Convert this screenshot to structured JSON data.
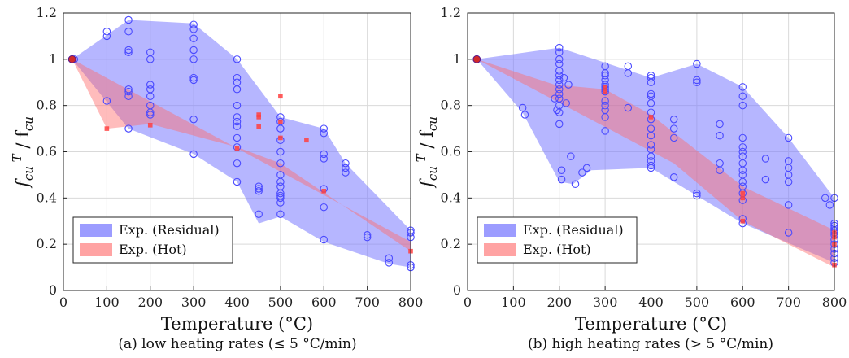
{
  "chart_data": [
    {
      "type": "scatter",
      "panel": "a",
      "caption": "(a) low heating rates (≤ 5 °C/min)",
      "xlabel": "Temperature (°C)",
      "ylabel": "fcu T / fcu",
      "xlim": [
        0,
        800
      ],
      "ylim": [
        0,
        1.2
      ],
      "xticks": [
        "0",
        "100",
        "200",
        "300",
        "400",
        "500",
        "600",
        "700",
        "800"
      ],
      "yticks": [
        "0",
        "0.2",
        "0.4",
        "0.6",
        "0.8",
        "1",
        "1.2"
      ],
      "grid": true,
      "legend_position": "bottom-left",
      "legend": [
        "Exp. (Residual)",
        "Exp. (Hot)"
      ],
      "series": [
        {
          "name": "Exp. (Residual)",
          "color": "#6666ff",
          "marker": "circle",
          "envelope": [
            [
              20,
              1.0
            ],
            [
              150,
              1.17
            ],
            [
              300,
              1.155
            ],
            [
              400,
              1.0
            ],
            [
              500,
              0.75
            ],
            [
              600,
              0.7
            ],
            [
              650,
              0.55
            ],
            [
              800,
              0.26
            ],
            [
              800,
              0.1
            ],
            [
              750,
              0.115
            ],
            [
              600,
              0.21
            ],
            [
              500,
              0.32
            ],
            [
              450,
              0.29
            ],
            [
              400,
              0.47
            ],
            [
              300,
              0.59
            ],
            [
              150,
              0.7
            ],
            [
              20,
              1.0
            ]
          ],
          "x": [
            20,
            20,
            25,
            100,
            100,
            100,
            150,
            150,
            150,
            150,
            150,
            150,
            150,
            150,
            200,
            200,
            200,
            200,
            200,
            200,
            200,
            200,
            300,
            300,
            300,
            300,
            300,
            300,
            300,
            300,
            300,
            400,
            400,
            400,
            400,
            400,
            400,
            400,
            400,
            400,
            400,
            400,
            400,
            450,
            450,
            450,
            450,
            500,
            500,
            500,
            500,
            500,
            500,
            500,
            500,
            500,
            500,
            500,
            500,
            500,
            500,
            600,
            600,
            600,
            600,
            600,
            600,
            600,
            650,
            650,
            650,
            700,
            700,
            750,
            750,
            800,
            800,
            800,
            800,
            800
          ],
          "y": [
            1.0,
            1.0,
            1.0,
            1.1,
            1.12,
            0.82,
            1.17,
            1.12,
            1.04,
            1.03,
            0.87,
            0.86,
            0.84,
            0.7,
            1.03,
            1.0,
            0.89,
            0.87,
            0.84,
            0.8,
            0.77,
            0.76,
            1.15,
            1.13,
            1.09,
            1.04,
            1.0,
            0.92,
            0.91,
            0.74,
            0.59,
            1.0,
            0.92,
            0.9,
            0.87,
            0.8,
            0.75,
            0.73,
            0.71,
            0.66,
            0.62,
            0.55,
            0.47,
            0.45,
            0.44,
            0.43,
            0.33,
            0.75,
            0.73,
            0.7,
            0.65,
            0.6,
            0.55,
            0.5,
            0.47,
            0.45,
            0.42,
            0.41,
            0.4,
            0.38,
            0.33,
            0.7,
            0.68,
            0.59,
            0.57,
            0.44,
            0.36,
            0.22,
            0.55,
            0.53,
            0.51,
            0.24,
            0.23,
            0.14,
            0.12,
            0.26,
            0.25,
            0.23,
            0.11,
            0.1
          ]
        },
        {
          "name": "Exp. (Hot)",
          "color": "#ff5a5a",
          "marker": "square",
          "envelope": [
            [
              20,
              1.0
            ],
            [
              800,
              0.21
            ],
            [
              800,
              0.17
            ],
            [
              500,
              0.55
            ],
            [
              400,
              0.62
            ],
            [
              200,
              0.72
            ],
            [
              100,
              0.7
            ],
            [
              20,
              1.0
            ]
          ],
          "x": [
            20,
            25,
            100,
            200,
            400,
            450,
            450,
            450,
            500,
            500,
            500,
            560,
            600,
            800
          ],
          "y": [
            1.0,
            1.0,
            0.7,
            0.715,
            0.615,
            0.76,
            0.75,
            0.71,
            0.84,
            0.73,
            0.66,
            0.65,
            0.43,
            0.17
          ]
        }
      ]
    },
    {
      "type": "scatter",
      "panel": "b",
      "caption": "(b) high heating rates (> 5 °C/min)",
      "xlabel": "Temperature (°C)",
      "ylabel": "fcu T / fcu",
      "xlim": [
        0,
        800
      ],
      "ylim": [
        0,
        1.2
      ],
      "xticks": [
        "0",
        "100",
        "200",
        "300",
        "400",
        "500",
        "600",
        "700",
        "800"
      ],
      "yticks": [
        "0",
        "0.2",
        "0.4",
        "0.6",
        "0.8",
        "1",
        "1.2"
      ],
      "grid": true,
      "legend_position": "bottom-left",
      "legend": [
        "Exp. (Residual)",
        "Exp. (Hot)"
      ],
      "series": [
        {
          "name": "Exp. (Residual)",
          "color": "#6666ff",
          "marker": "circle",
          "envelope": [
            [
              20,
              1.0
            ],
            [
              200,
              1.05
            ],
            [
              400,
              0.92
            ],
            [
              500,
              0.98
            ],
            [
              600,
              0.88
            ],
            [
              700,
              0.66
            ],
            [
              800,
              0.4
            ],
            [
              800,
              0.12
            ],
            [
              600,
              0.29
            ],
            [
              500,
              0.41
            ],
            [
              400,
              0.53
            ],
            [
              270,
              0.52
            ],
            [
              230,
              0.46
            ],
            [
              200,
              0.47
            ],
            [
              120,
              0.77
            ],
            [
              20,
              1.0
            ]
          ],
          "x": [
            20,
            120,
            125,
            190,
            195,
            200,
            200,
            200,
            200,
            200,
            200,
            200,
            200,
            200,
            200,
            200,
            200,
            200,
            200,
            205,
            205,
            210,
            215,
            220,
            225,
            235,
            250,
            260,
            300,
            300,
            300,
            300,
            300,
            300,
            300,
            300,
            300,
            300,
            300,
            300,
            300,
            350,
            350,
            350,
            400,
            400,
            400,
            400,
            400,
            400,
            400,
            400,
            400,
            400,
            400,
            400,
            400,
            400,
            400,
            400,
            450,
            450,
            450,
            450,
            500,
            500,
            500,
            500,
            500,
            550,
            550,
            550,
            550,
            600,
            600,
            600,
            600,
            600,
            600,
            600,
            600,
            600,
            600,
            600,
            600,
            600,
            600,
            600,
            600,
            650,
            650,
            700,
            700,
            700,
            700,
            700,
            700,
            700,
            780,
            790,
            800,
            800,
            800,
            800,
            800,
            800,
            800,
            800,
            800,
            800,
            800,
            800,
            800
          ],
          "y": [
            1.0,
            0.79,
            0.76,
            0.83,
            0.78,
            1.05,
            1.03,
            1.0,
            0.98,
            0.95,
            0.93,
            0.91,
            0.89,
            0.87,
            0.85,
            0.83,
            0.8,
            0.77,
            0.72,
            0.52,
            0.48,
            0.92,
            0.81,
            0.89,
            0.58,
            0.46,
            0.51,
            0.53,
            0.97,
            0.94,
            0.93,
            0.91,
            0.89,
            0.88,
            0.87,
            0.86,
            0.82,
            0.8,
            0.78,
            0.75,
            0.69,
            0.97,
            0.94,
            0.79,
            0.93,
            0.92,
            0.9,
            0.85,
            0.84,
            0.81,
            0.77,
            0.74,
            0.7,
            0.67,
            0.63,
            0.61,
            0.58,
            0.56,
            0.54,
            0.53,
            0.74,
            0.7,
            0.66,
            0.49,
            0.98,
            0.91,
            0.9,
            0.42,
            0.41,
            0.72,
            0.67,
            0.55,
            0.52,
            0.88,
            0.84,
            0.8,
            0.66,
            0.62,
            0.6,
            0.58,
            0.55,
            0.52,
            0.5,
            0.47,
            0.45,
            0.42,
            0.39,
            0.31,
            0.29,
            0.57,
            0.48,
            0.66,
            0.56,
            0.53,
            0.5,
            0.47,
            0.37,
            0.25,
            0.4,
            0.37,
            0.4,
            0.29,
            0.28,
            0.27,
            0.26,
            0.25,
            0.24,
            0.22,
            0.2,
            0.18,
            0.16,
            0.14,
            0.12
          ]
        },
        {
          "name": "Exp. (Hot)",
          "color": "#ff5a5a",
          "marker": "square",
          "envelope": [
            [
              20,
              1.0
            ],
            [
              190,
              0.89
            ],
            [
              300,
              0.87
            ],
            [
              400,
              0.76
            ],
            [
              600,
              0.45
            ],
            [
              800,
              0.26
            ],
            [
              800,
              0.1
            ],
            [
              600,
              0.3
            ],
            [
              450,
              0.55
            ],
            [
              20,
              1.0
            ]
          ],
          "x": [
            20,
            300,
            300,
            400,
            600,
            600,
            600,
            800,
            800,
            800,
            800
          ],
          "y": [
            1.0,
            0.88,
            0.86,
            0.75,
            0.42,
            0.4,
            0.3,
            0.25,
            0.23,
            0.2,
            0.11
          ]
        }
      ]
    }
  ]
}
